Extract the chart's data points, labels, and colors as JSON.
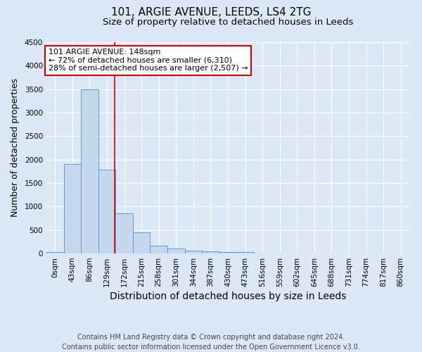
{
  "title": "101, ARGIE AVENUE, LEEDS, LS4 2TG",
  "subtitle": "Size of property relative to detached houses in Leeds",
  "xlabel": "Distribution of detached houses by size in Leeds",
  "ylabel": "Number of detached properties",
  "bin_labels": [
    "0sqm",
    "43sqm",
    "86sqm",
    "129sqm",
    "172sqm",
    "215sqm",
    "258sqm",
    "301sqm",
    "344sqm",
    "387sqm",
    "430sqm",
    "473sqm",
    "516sqm",
    "559sqm",
    "602sqm",
    "645sqm",
    "688sqm",
    "731sqm",
    "774sqm",
    "817sqm",
    "860sqm"
  ],
  "bar_values": [
    30,
    1900,
    3500,
    1790,
    850,
    450,
    160,
    100,
    60,
    50,
    35,
    30,
    0,
    0,
    0,
    0,
    0,
    0,
    0,
    0,
    0
  ],
  "bar_color": "#c5d8ed",
  "bar_edgecolor": "#5b9bd5",
  "ylim": [
    0,
    4500
  ],
  "yticks": [
    0,
    500,
    1000,
    1500,
    2000,
    2500,
    3000,
    3500,
    4000,
    4500
  ],
  "vline_x": 3.44,
  "vline_color": "#cc0000",
  "annotation_text": "101 ARGIE AVENUE: 148sqm\n← 72% of detached houses are smaller (6,310)\n28% of semi-detached houses are larger (2,507) →",
  "annotation_box_color": "#cc0000",
  "footer_line1": "Contains HM Land Registry data © Crown copyright and database right 2024.",
  "footer_line2": "Contains public sector information licensed under the Open Government Licence v3.0.",
  "background_color": "#dce8f5",
  "plot_bg_color": "#dce8f5",
  "grid_color": "white",
  "title_fontsize": 11,
  "subtitle_fontsize": 9.5,
  "xlabel_fontsize": 10,
  "ylabel_fontsize": 9,
  "tick_fontsize": 7.5,
  "annot_fontsize": 8,
  "footer_fontsize": 7
}
